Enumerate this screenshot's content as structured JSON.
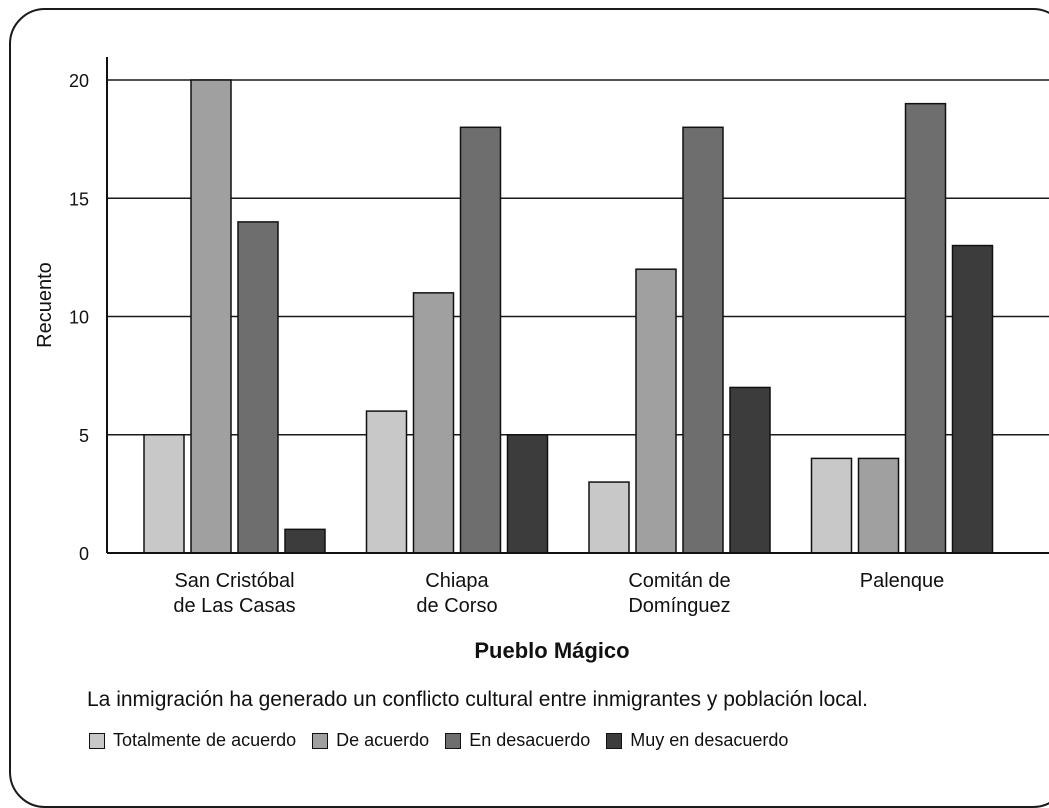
{
  "chart_data": {
    "type": "bar",
    "categories": [
      [
        "San Cristóbal",
        "de Las Casas"
      ],
      [
        "Chiapa",
        "de Corso"
      ],
      [
        "Comitán de",
        "Domínguez"
      ],
      [
        "Palenque"
      ]
    ],
    "series": [
      {
        "name": "Totalmente de acuerdo",
        "color": "#c8c8c8",
        "values": [
          5,
          6,
          3,
          4
        ]
      },
      {
        "name": "De acuerdo",
        "color": "#a0a0a0",
        "values": [
          20,
          11,
          12,
          4
        ]
      },
      {
        "name": "En desacuerdo",
        "color": "#6e6e6e",
        "values": [
          14,
          18,
          18,
          19
        ]
      },
      {
        "name": "Muy en desacuerdo",
        "color": "#3c3c3c",
        "values": [
          1,
          5,
          7,
          13
        ]
      }
    ],
    "yticks": [
      0,
      5,
      10,
      15,
      20
    ],
    "ylim": [
      0,
      20
    ],
    "ylabel": "Recuento",
    "xlabel": "Pueblo Mágico",
    "legend_title": "La inmigración ha generado un conflicto cultural entre inmigrantes y población local.",
    "legend_position": "bottom",
    "grid": true
  }
}
